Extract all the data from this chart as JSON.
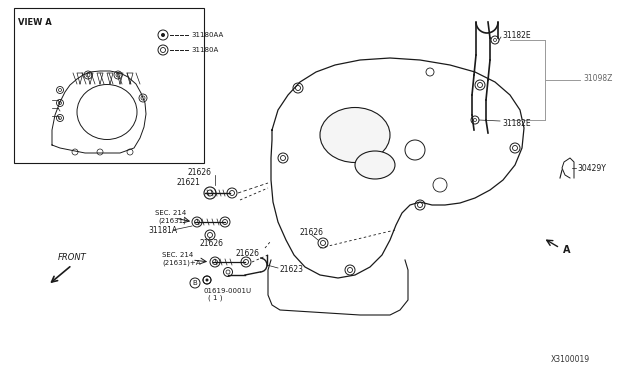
{
  "bg_color": "#ffffff",
  "line_color": "#1a1a1a",
  "gray_line": "#999999",
  "part_number_bottom": "X3100019",
  "labels": {
    "view_a": "VIEW A",
    "legend1_text": "31180AA",
    "legend2_text": "31180A",
    "label_21626_top": "21626",
    "label_21621": "21621",
    "label_sec214_1": "SEC. 214",
    "label_21631_1": "(21631)",
    "label_31181A": "31181A",
    "label_21626_mid": "21626",
    "label_21626_r": "21626",
    "label_21626_bot": "21626",
    "label_sec214_2": "SEC. 214",
    "label_21631A": "(21631)+A",
    "label_01619": "01619-0001U",
    "label_01619b": "( 1 )",
    "label_21623": "21623",
    "label_front": "FRONT",
    "label_31182E_top": "31182E",
    "label_31098Z": "31098Z",
    "label_31182E_bot": "31182E",
    "label_30429Y": "30429Y",
    "label_A": "A"
  }
}
